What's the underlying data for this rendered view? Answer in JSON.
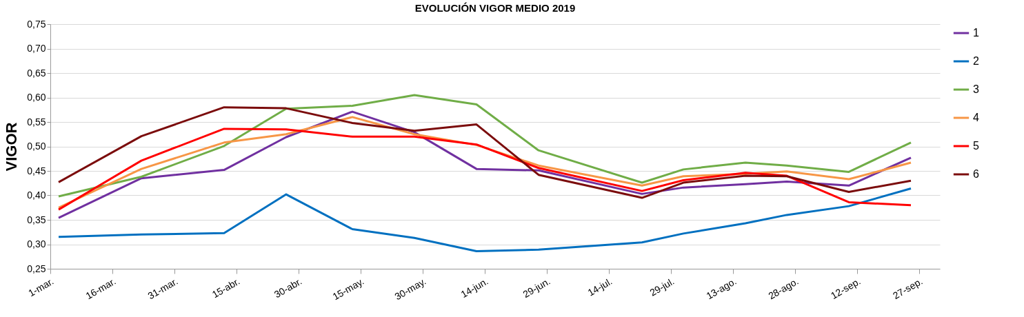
{
  "chart_data": {
    "type": "line",
    "title": "EVOLUCIÓN VIGOR MEDIO 2019",
    "ylabel": "VIGOR",
    "x": [
      "2019-03-03",
      "2019-03-23",
      "2019-04-12",
      "2019-04-27",
      "2019-05-13",
      "2019-05-28",
      "2019-06-12",
      "2019-06-27",
      "2019-07-22",
      "2019-08-01",
      "2019-08-16",
      "2019-08-26",
      "2019-09-10",
      "2019-09-25"
    ],
    "series": [
      {
        "name": "1",
        "color": "#7030a0",
        "values": [
          0.354,
          0.435,
          0.452,
          0.519,
          0.571,
          0.529,
          0.454,
          0.451,
          0.403,
          0.416,
          0.423,
          0.428,
          0.42,
          0.477
        ]
      },
      {
        "name": "2",
        "color": "#0070c0",
        "values": [
          0.315,
          0.32,
          0.323,
          0.402,
          0.331,
          0.313,
          0.286,
          0.289,
          0.304,
          0.322,
          0.343,
          0.36,
          0.378,
          0.414
        ]
      },
      {
        "name": "3",
        "color": "#70ad47",
        "values": [
          0.398,
          0.438,
          0.501,
          0.577,
          0.583,
          0.605,
          0.586,
          0.492,
          0.426,
          0.453,
          0.467,
          0.461,
          0.448,
          0.508
        ]
      },
      {
        "name": "4",
        "color": "#f79646",
        "values": [
          0.375,
          0.454,
          0.508,
          0.525,
          0.56,
          0.525,
          0.503,
          0.461,
          0.42,
          0.439,
          0.444,
          0.449,
          0.433,
          0.467
        ]
      },
      {
        "name": "5",
        "color": "#ff0000",
        "values": [
          0.371,
          0.471,
          0.536,
          0.535,
          0.52,
          0.52,
          0.504,
          0.456,
          0.409,
          0.431,
          0.446,
          0.44,
          0.386,
          0.38
        ]
      },
      {
        "name": "6",
        "color": "#7b0c0c",
        "values": [
          0.427,
          0.521,
          0.58,
          0.578,
          0.548,
          0.532,
          0.545,
          0.442,
          0.395,
          0.426,
          0.44,
          0.439,
          0.407,
          0.43
        ]
      }
    ],
    "xlim": [
      "2019-03-01",
      "2019-10-02"
    ],
    "xticks": [
      {
        "value": "2019-03-01",
        "label": "1-mar."
      },
      {
        "value": "2019-03-16",
        "label": "16-mar."
      },
      {
        "value": "2019-03-31",
        "label": "31-mar."
      },
      {
        "value": "2019-04-15",
        "label": "15-abr."
      },
      {
        "value": "2019-04-30",
        "label": "30-abr."
      },
      {
        "value": "2019-05-15",
        "label": "15-may."
      },
      {
        "value": "2019-05-30",
        "label": "30-may."
      },
      {
        "value": "2019-06-14",
        "label": "14-jun."
      },
      {
        "value": "2019-06-29",
        "label": "29-jun."
      },
      {
        "value": "2019-07-14",
        "label": "14-jul."
      },
      {
        "value": "2019-07-29",
        "label": "29-jul."
      },
      {
        "value": "2019-08-13",
        "label": "13-ago."
      },
      {
        "value": "2019-08-28",
        "label": "28-ago."
      },
      {
        "value": "2019-09-12",
        "label": "12-sep."
      },
      {
        "value": "2019-09-27",
        "label": "27-sep."
      }
    ],
    "ylim": [
      0.25,
      0.75
    ],
    "yticks": [
      {
        "value": 0.25,
        "label": "0,25"
      },
      {
        "value": 0.3,
        "label": "0,30"
      },
      {
        "value": 0.35,
        "label": "0,35"
      },
      {
        "value": 0.4,
        "label": "0,40"
      },
      {
        "value": 0.45,
        "label": "0,45"
      },
      {
        "value": 0.5,
        "label": "0,50"
      },
      {
        "value": 0.55,
        "label": "0,55"
      },
      {
        "value": 0.6,
        "label": "0,60"
      },
      {
        "value": 0.65,
        "label": "0,65"
      },
      {
        "value": 0.7,
        "label": "0,70"
      },
      {
        "value": 0.75,
        "label": "0,75"
      }
    ],
    "grid": "y",
    "legend": "right",
    "marker": "none",
    "line_style": "solid"
  }
}
